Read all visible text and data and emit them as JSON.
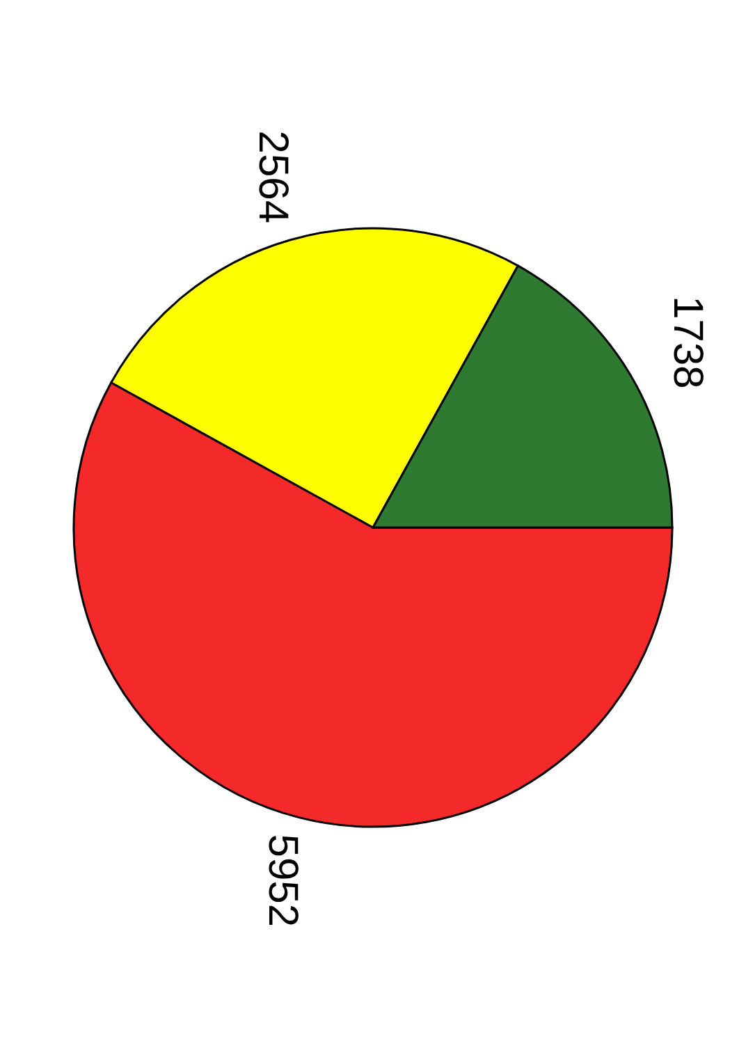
{
  "chart_data": {
    "type": "pie",
    "categories": [
      null,
      null,
      null
    ],
    "values": [
      5952,
      2564,
      1738
    ],
    "colors": [
      "#f42a2a",
      "#ffff00",
      "#2e7a30"
    ],
    "data_labels": true,
    "legend": false
  }
}
